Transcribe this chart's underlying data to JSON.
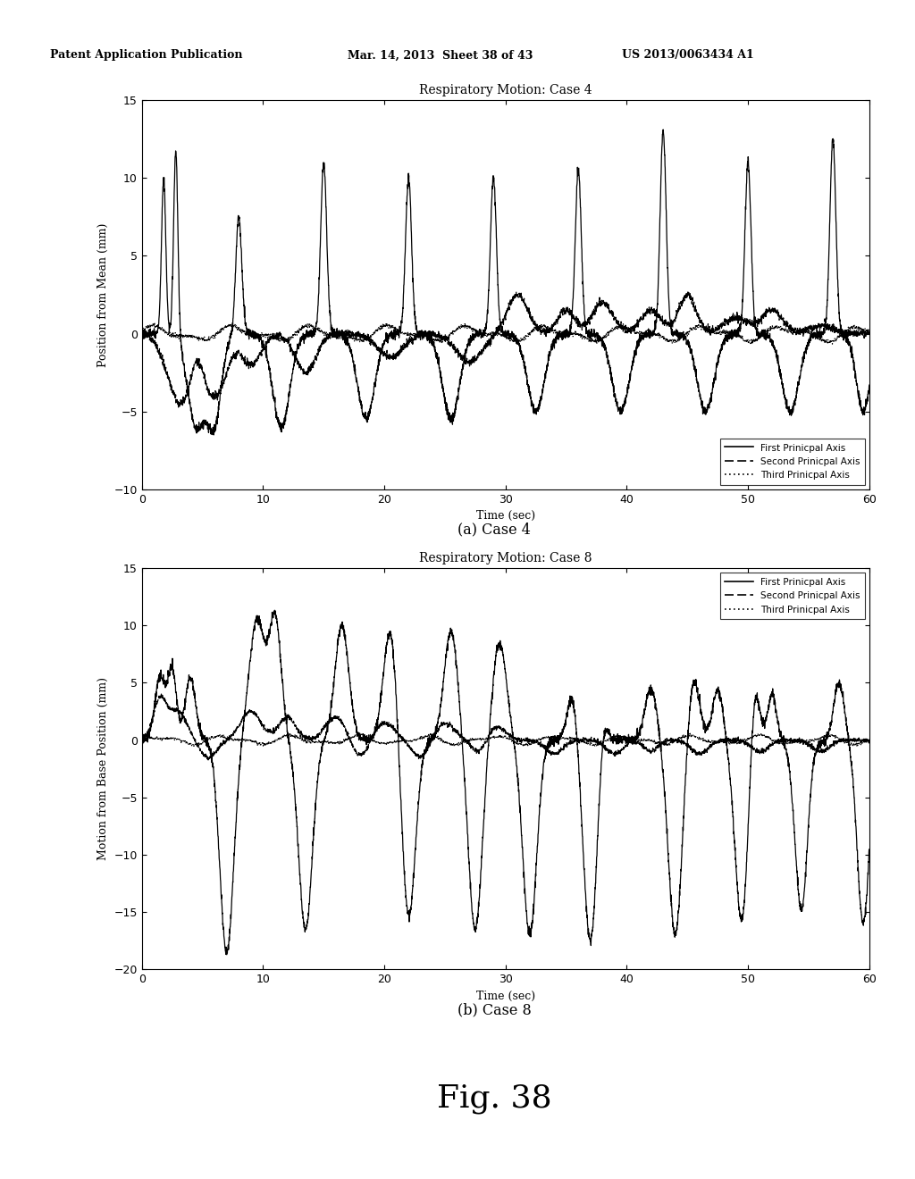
{
  "fig_width": 10.24,
  "fig_height": 13.2,
  "bg_color": "#ffffff",
  "header_left": "Patent Application Publication",
  "header_mid": "Mar. 14, 2013  Sheet 38 of 43",
  "header_right": "US 2013/0063434 A1",
  "plot1": {
    "title": "Respiratory Motion: Case 4",
    "xlabel": "Time (sec)",
    "ylabel": "Position from Mean (mm)",
    "caption": "(a) Case 4",
    "xlim": [
      0,
      60
    ],
    "ylim": [
      -10,
      15
    ],
    "yticks": [
      -10,
      -5,
      0,
      5,
      10,
      15
    ],
    "xticks": [
      0,
      10,
      20,
      30,
      40,
      50,
      60
    ],
    "legend_loc": "lower right"
  },
  "plot2": {
    "title": "Respiratory Motion: Case 8",
    "xlabel": "Time (sec)",
    "ylabel": "Motion from Base Position (mm)",
    "caption": "(b) Case 8",
    "xlim": [
      0,
      60
    ],
    "ylim": [
      -20,
      15
    ],
    "yticks": [
      -20,
      -15,
      -10,
      -5,
      0,
      5,
      10,
      15
    ],
    "xticks": [
      0,
      10,
      20,
      30,
      40,
      50,
      60
    ],
    "legend_loc": "upper right"
  },
  "fig38_label": "Fig. 38"
}
